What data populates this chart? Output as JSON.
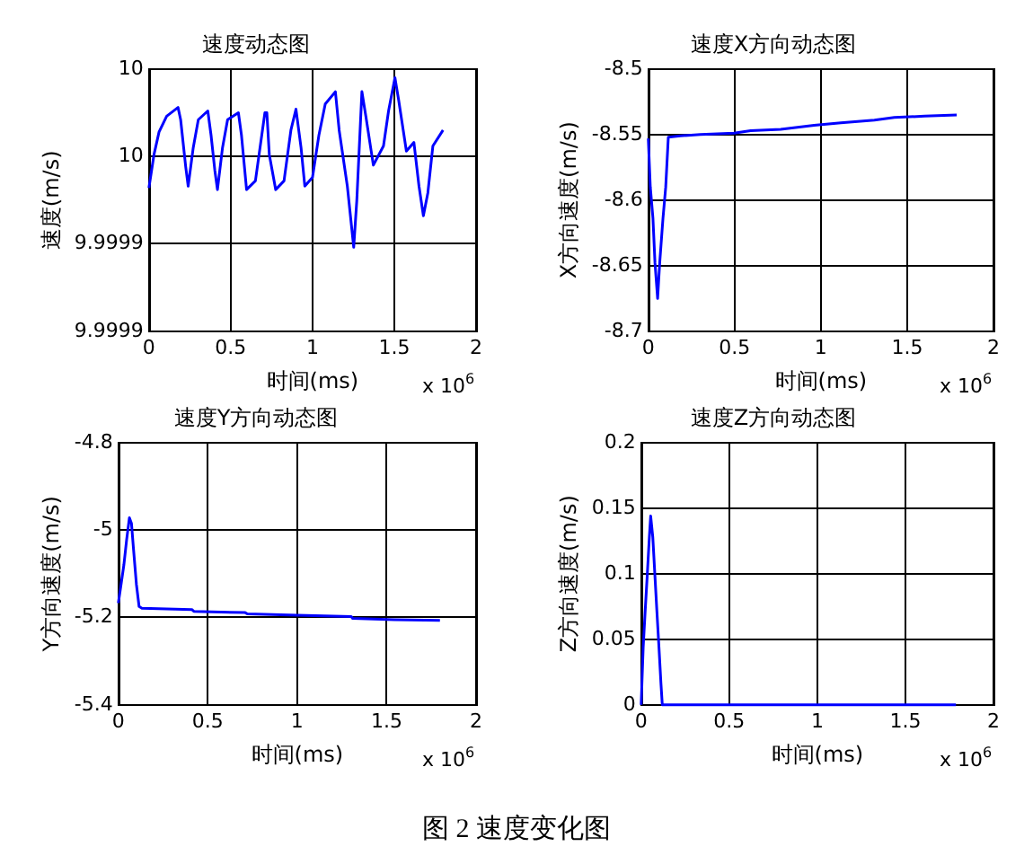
{
  "chart_data": [
    {
      "type": "line",
      "title": "速度动态图",
      "xlabel": "时间(ms)",
      "ylabel": "速度(m/s)",
      "annotations": [
        "x 10$^{6}$"
      ],
      "grid": true,
      "xlim": [
        0,
        2
      ],
      "xticks": [
        0,
        0.5,
        1,
        1.5,
        2
      ],
      "ylim": [
        9.99985,
        10
      ],
      "yticks": [
        {
          "value": 9.99985,
          "label": "9.9999"
        },
        {
          "value": 9.9999,
          "label": "9.9999"
        },
        {
          "value": 9.99995,
          "label": "10"
        },
        {
          "value": 10,
          "label": "10"
        }
      ],
      "series": [
        {
          "color": "#0000ff",
          "x": [
            0,
            0.031,
            0.062,
            0.1085,
            0.178,
            0.194,
            0.225,
            0.24,
            0.271,
            0.302,
            0.36,
            0.38,
            0.403,
            0.419,
            0.45,
            0.481,
            0.547,
            0.566,
            0.597,
            0.651,
            0.709,
            0.721,
            0.736,
            0.775,
            0.826,
            0.868,
            0.899,
            0.93,
            0.953,
            1.0,
            1.039,
            1.078,
            1.14,
            1.163,
            1.213,
            1.252,
            1.271,
            1.302,
            1.326,
            1.372,
            1.434,
            1.465,
            1.504,
            1.527,
            1.574,
            1.62,
            1.651,
            1.678,
            1.705,
            1.736,
            1.798
          ],
          "values": [
            9.999932,
            9.999951,
            9.999964,
            9.999973,
            9.999978,
            9.999971,
            9.999944,
            9.999933,
            9.999955,
            9.999971,
            9.999976,
            9.999962,
            9.999942,
            9.999931,
            9.999955,
            9.999971,
            9.999975,
            9.999962,
            9.999931,
            9.999936,
            9.999975,
            9.999975,
            9.999951,
            9.999931,
            9.999936,
            9.999965,
            9.999977,
            9.999955,
            9.999933,
            9.999938,
            9.999962,
            9.99998,
            9.999987,
            9.999965,
            9.999933,
            9.999898,
            9.999925,
            9.999987,
            9.999973,
            9.999945,
            9.999956,
            9.999976,
            9.999995,
            9.999982,
            9.999953,
            9.999958,
            9.999933,
            9.999916,
            9.999929,
            9.999956,
            9.999965
          ]
        }
      ]
    },
    {
      "type": "line",
      "title": "速度X方向动态图",
      "xlabel": "时间(ms)",
      "ylabel": "X方向速度(m/s)",
      "annotations": [
        "x 10$^{6}$"
      ],
      "grid": true,
      "xlim": [
        0,
        2
      ],
      "xticks": [
        0,
        0.5,
        1,
        1.5,
        2
      ],
      "ylim": [
        -8.7,
        -8.5
      ],
      "yticks": [
        -8.7,
        -8.65,
        -8.6,
        -8.55,
        -8.5
      ],
      "series": [
        {
          "color": "#0000ff",
          "x": [
            0,
            0.0116,
            0.027,
            0.0388,
            0.054,
            0.066,
            0.085,
            0.101,
            0.116,
            0.186,
            0.302,
            0.496,
            0.593,
            0.767,
            0.961,
            1.116,
            1.31,
            1.426,
            1.601,
            1.787
          ],
          "values": [
            -8.553,
            -8.59,
            -8.614,
            -8.648,
            -8.675,
            -8.648,
            -8.614,
            -8.59,
            -8.552,
            -8.551,
            -8.55,
            -8.549,
            -8.547,
            -8.546,
            -8.543,
            -8.541,
            -8.539,
            -8.537,
            -8.536,
            -8.535
          ]
        }
      ]
    },
    {
      "type": "line",
      "title": "速度Y方向动态图",
      "xlabel": "时间(ms)",
      "ylabel": "Y方向速度(m/s)",
      "annotations": [
        "x 10$^{6}$"
      ],
      "grid": true,
      "xlim": [
        0,
        2
      ],
      "xticks": [
        0,
        0.5,
        1,
        1.5,
        2
      ],
      "ylim": [
        -5.4,
        -4.8
      ],
      "yticks": [
        -5.4,
        -5.2,
        -5,
        -4.8
      ],
      "series": [
        {
          "color": "#0000ff",
          "x": [
            0,
            0.0155,
            0.031,
            0.0465,
            0.062,
            0.0736,
            0.085,
            0.101,
            0.116,
            0.132,
            0.411,
            0.422,
            0.709,
            0.721,
            1.0,
            1.302,
            1.31,
            1.543,
            1.798
          ],
          "values": [
            -5.167,
            -5.124,
            -5.08,
            -5.022,
            -4.972,
            -4.985,
            -5.044,
            -5.124,
            -5.175,
            -5.179,
            -5.182,
            -5.186,
            -5.189,
            -5.192,
            -5.195,
            -5.198,
            -5.202,
            -5.205,
            -5.207
          ]
        }
      ]
    },
    {
      "type": "line",
      "title": "速度Z方向动态图",
      "xlabel": "时间(ms)",
      "ylabel": "Z方向速度(m/s)",
      "annotations": [
        "x 10$^{6}$",
        "图 2  速度变化图"
      ],
      "grid": true,
      "xlim": [
        0,
        2
      ],
      "xticks": [
        0,
        0.5,
        1,
        1.5,
        2
      ],
      "ylim": [
        0,
        0.2
      ],
      "yticks": [
        0,
        0.05,
        0.1,
        0.15,
        0.2
      ],
      "series": [
        {
          "color": "#0000ff",
          "x": [
            0,
            0.0116,
            0.023,
            0.035,
            0.0465,
            0.054,
            0.066,
            0.0775,
            0.089,
            0.101,
            0.112,
            0.12,
            1.787
          ],
          "values": [
            0,
            0.044,
            0.072,
            0.1,
            0.128,
            0.144,
            0.128,
            0.1,
            0.072,
            0.044,
            0.017,
            0,
            0
          ]
        }
      ]
    }
  ]
}
